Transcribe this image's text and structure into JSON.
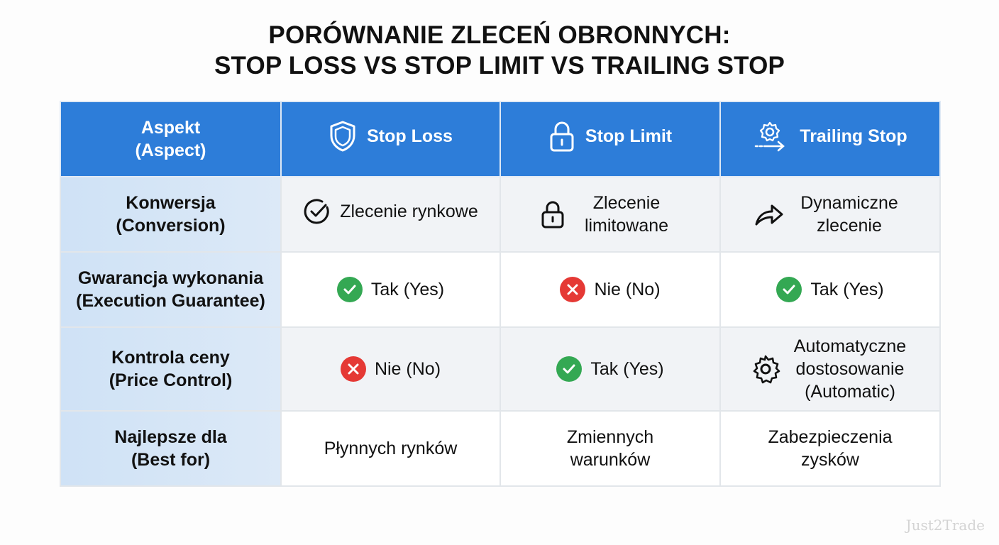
{
  "title": {
    "line1": "PORÓWNANIE ZLECEŃ OBRONNYCH:",
    "line2": "STOP LOSS VS STOP LIMIT VS TRAILING STOP"
  },
  "colors": {
    "header": "#2d7dd9",
    "aspect_column": "#d6e6f7",
    "yes": "#34a853",
    "no": "#e53935"
  },
  "header": {
    "aspect": {
      "line1": "Aspekt",
      "line2": "(Aspect)"
    },
    "columns": [
      {
        "label": "Stop Loss",
        "icon": "shield-icon"
      },
      {
        "label": "Stop Limit",
        "icon": "lock-icon"
      },
      {
        "label": "Trailing Stop",
        "icon": "gear-arrow-icon"
      }
    ]
  },
  "rows": [
    {
      "aspect": {
        "line1": "Konwersja",
        "line2": "(Conversion)"
      },
      "cells": [
        {
          "icon": "check-circle-icon",
          "text": "Zlecenie rynkowe"
        },
        {
          "icon": "lock-icon",
          "text": "Zlecenie limitowane"
        },
        {
          "icon": "share-arrow-icon",
          "text": "Dynamiczne zlecenie"
        }
      ]
    },
    {
      "aspect": {
        "line1": "Gwarancja wykonania",
        "line2": "(Execution Guarantee)"
      },
      "cells": [
        {
          "icon": "yes-icon",
          "text": "Tak (Yes)"
        },
        {
          "icon": "no-icon",
          "text": "Nie (No)"
        },
        {
          "icon": "yes-icon",
          "text": "Tak (Yes)"
        }
      ]
    },
    {
      "aspect": {
        "line1": "Kontrola ceny",
        "line2": "(Price Control)"
      },
      "cells": [
        {
          "icon": "no-icon",
          "text": "Nie (No)"
        },
        {
          "icon": "yes-icon",
          "text": "Tak (Yes)"
        },
        {
          "icon": "gear-icon",
          "text": "Automatyczne dostosowanie (Automatic)"
        }
      ]
    },
    {
      "aspect": {
        "line1": "Najlepsze dla",
        "line2": "(Best for)"
      },
      "cells": [
        {
          "text": "Płynnych rynków"
        },
        {
          "text": "Zmiennych warunków"
        },
        {
          "text": "Zabezpieczenia zysków"
        }
      ]
    }
  ],
  "watermark": "Just2Trade"
}
